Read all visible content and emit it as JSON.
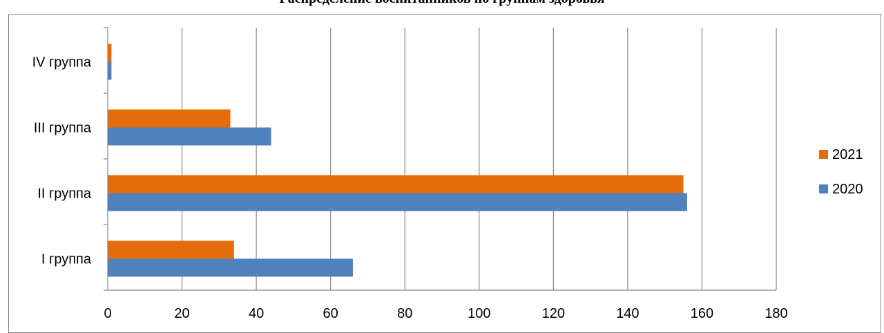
{
  "chart_data": {
    "type": "bar",
    "orientation": "horizontal",
    "title": "Распределение воспитанников по группам здоровья",
    "categories": [
      "I группа",
      "II группа",
      "III группа",
      "IV группа"
    ],
    "series": [
      {
        "name": "2020",
        "color": "#4f81bd",
        "values": [
          66,
          156,
          44,
          1
        ]
      },
      {
        "name": "2021",
        "color": "#e46c0a",
        "values": [
          34,
          155,
          33,
          1
        ]
      }
    ],
    "xlim": [
      0,
      180
    ],
    "xticks": [
      0,
      20,
      40,
      60,
      80,
      100,
      120,
      140,
      160,
      180
    ],
    "grid": true,
    "legend_position": "right",
    "legend_order": [
      "2021",
      "2020"
    ]
  }
}
